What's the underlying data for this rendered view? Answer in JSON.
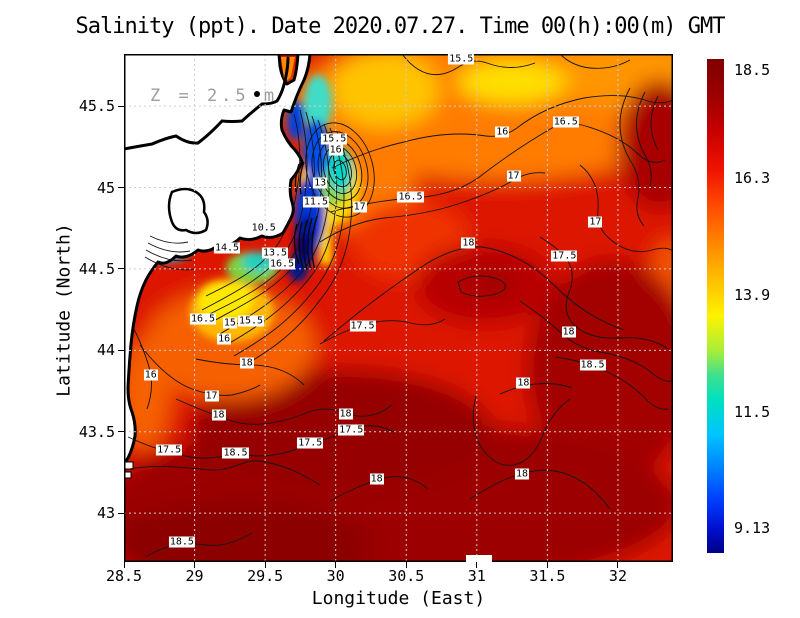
{
  "chart_data": {
    "type": "contour",
    "title": "Salinity (ppt). Date 2020.07.27. Time 00(h):00(m) GMT",
    "variable": "Salinity",
    "units": "ppt",
    "date": "2020.07.27",
    "time": "00(h):00(m) GMT",
    "depth_annotation": "Z = 2.5 m",
    "xlabel": "Longitude (East)",
    "ylabel": "Latitude (North)",
    "xlim": [
      28.5,
      32.39
    ],
    "ylim": [
      42.7,
      45.82
    ],
    "x_ticks": [
      28.5,
      29,
      29.5,
      30,
      30.5,
      31,
      31.5,
      32
    ],
    "y_ticks": [
      43,
      43.5,
      44,
      44.5,
      45,
      45.5
    ],
    "grid": true,
    "contour_interval": 0.5,
    "colorbar": {
      "colormap": "jet",
      "min": 9.13,
      "max": 18.5,
      "tick_labels": [
        "18.5",
        "16.3",
        "13.9",
        "11.5",
        "9.13"
      ],
      "tick_values": [
        18.5,
        16.3,
        13.9,
        11.5,
        9.13
      ]
    },
    "labeled_contours": [
      {
        "v": 15.5,
        "lon": 30.89,
        "lat": 45.79
      },
      {
        "v": 16,
        "lon": 31.18,
        "lat": 45.34
      },
      {
        "v": 16.5,
        "lon": 31.63,
        "lat": 45.4
      },
      {
        "v": 17,
        "lon": 31.26,
        "lat": 45.07
      },
      {
        "v": 17,
        "lon": 31.84,
        "lat": 44.79
      },
      {
        "v": 17.5,
        "lon": 31.62,
        "lat": 44.58
      },
      {
        "v": 16.5,
        "lon": 30.53,
        "lat": 44.94
      },
      {
        "v": 17,
        "lon": 30.17,
        "lat": 44.88
      },
      {
        "v": 13,
        "lon": 29.89,
        "lat": 45.03
      },
      {
        "v": 11.5,
        "lon": 29.86,
        "lat": 44.91
      },
      {
        "v": 15.5,
        "lon": 29.99,
        "lat": 45.3
      },
      {
        "v": 16,
        "lon": 30.0,
        "lat": 45.23
      },
      {
        "v": 10.5,
        "lon": 29.49,
        "lat": 44.75
      },
      {
        "v": 14.5,
        "lon": 29.23,
        "lat": 44.63
      },
      {
        "v": 13.5,
        "lon": 29.57,
        "lat": 44.6
      },
      {
        "v": 16.5,
        "lon": 29.62,
        "lat": 44.53
      },
      {
        "v": 16.5,
        "lon": 29.06,
        "lat": 44.19
      },
      {
        "v": 15,
        "lon": 29.25,
        "lat": 44.17
      },
      {
        "v": 15.5,
        "lon": 29.4,
        "lat": 44.18
      },
      {
        "v": 16,
        "lon": 29.21,
        "lat": 44.07
      },
      {
        "v": 17.5,
        "lon": 30.19,
        "lat": 44.15
      },
      {
        "v": 16,
        "lon": 28.69,
        "lat": 43.85
      },
      {
        "v": 17,
        "lon": 29.12,
        "lat": 43.72
      },
      {
        "v": 18,
        "lon": 29.17,
        "lat": 43.6
      },
      {
        "v": 18,
        "lon": 29.37,
        "lat": 43.92
      },
      {
        "v": 17.5,
        "lon": 28.82,
        "lat": 43.39
      },
      {
        "v": 18.5,
        "lon": 29.29,
        "lat": 43.37
      },
      {
        "v": 17.5,
        "lon": 29.82,
        "lat": 43.43
      },
      {
        "v": 18,
        "lon": 30.07,
        "lat": 43.61
      },
      {
        "v": 17.5,
        "lon": 30.11,
        "lat": 43.51
      },
      {
        "v": 18,
        "lon": 30.29,
        "lat": 43.21
      },
      {
        "v": 18.5,
        "lon": 28.91,
        "lat": 42.82
      },
      {
        "v": 18,
        "lon": 30.94,
        "lat": 44.66
      },
      {
        "v": 18,
        "lon": 31.65,
        "lat": 44.11
      },
      {
        "v": 18.5,
        "lon": 31.82,
        "lat": 43.91
      },
      {
        "v": 18,
        "lon": 31.33,
        "lat": 43.8
      },
      {
        "v": 18,
        "lon": 31.32,
        "lat": 43.24
      }
    ]
  }
}
